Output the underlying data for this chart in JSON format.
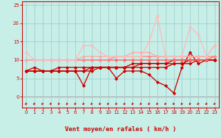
{
  "xlabel": "Vent moyen/en rafales ( km/h )",
  "bg_color": "#c8eee8",
  "grid_color": "#9ecece",
  "x_values": [
    0,
    1,
    2,
    3,
    4,
    5,
    6,
    7,
    8,
    9,
    10,
    11,
    12,
    13,
    14,
    15,
    16,
    17,
    18,
    19,
    20,
    21,
    22,
    23
  ],
  "ylim": [
    -3,
    26
  ],
  "xlim": [
    -0.5,
    23.5
  ],
  "yticks": [
    0,
    5,
    10,
    15,
    20,
    25
  ],
  "xticks": [
    0,
    1,
    2,
    3,
    4,
    5,
    6,
    7,
    8,
    9,
    10,
    11,
    12,
    13,
    14,
    15,
    16,
    17,
    18,
    19,
    20,
    21,
    22,
    23
  ],
  "lines": [
    {
      "y": [
        7,
        8,
        7,
        7,
        7,
        7,
        7,
        3,
        8,
        8,
        8,
        5,
        7,
        7,
        7,
        6,
        4,
        3,
        1,
        8,
        12,
        9,
        10,
        10
      ],
      "color": "#cc0000",
      "lw": 1.0,
      "ms": 2.5
    },
    {
      "y": [
        7,
        7,
        7,
        7,
        7,
        7,
        7,
        7,
        7,
        8,
        8,
        8,
        8,
        8,
        8,
        8,
        8,
        8,
        9,
        9,
        9,
        10,
        10,
        10
      ],
      "color": "#cc0000",
      "lw": 1.0,
      "ms": 2.5
    },
    {
      "y": [
        7,
        7,
        7,
        7,
        7,
        7,
        7,
        7,
        8,
        8,
        8,
        8,
        8,
        8,
        9,
        9,
        9,
        9,
        9,
        9,
        10,
        10,
        10,
        10
      ],
      "color": "#cc0000",
      "lw": 1.0,
      "ms": 2.5
    },
    {
      "y": [
        7,
        7,
        7,
        7,
        8,
        8,
        8,
        8,
        8,
        8,
        8,
        8,
        8,
        9,
        9,
        9,
        9,
        9,
        10,
        10,
        10,
        10,
        10,
        10
      ],
      "color": "#cc0000",
      "lw": 1.0,
      "ms": 2.5
    },
    {
      "y": [
        10,
        10,
        10,
        10,
        10,
        10,
        10,
        10,
        10,
        10,
        10,
        10,
        10,
        10,
        10,
        10,
        10,
        10,
        10,
        10,
        10,
        10,
        10,
        11
      ],
      "color": "#ff6666",
      "lw": 1.0,
      "ms": 2.5
    },
    {
      "y": [
        10,
        10,
        10,
        10,
        10,
        10,
        10,
        10,
        10,
        10,
        10,
        11,
        11,
        11,
        11,
        11,
        11,
        11,
        11,
        11,
        11,
        11,
        11,
        11
      ],
      "color": "#ff8888",
      "lw": 1.0,
      "ms": 2.5
    },
    {
      "y": [
        10,
        10,
        10,
        10,
        10,
        10,
        10,
        11,
        11,
        11,
        11,
        11,
        11,
        12,
        12,
        12,
        11,
        11,
        11,
        11,
        11,
        11,
        11,
        14
      ],
      "color": "#ffaaaa",
      "lw": 1.0,
      "ms": 2.5
    },
    {
      "y": [
        12,
        10,
        10,
        10,
        10,
        10,
        10,
        14,
        14,
        12,
        11,
        11,
        11,
        11,
        11,
        15,
        22,
        11,
        11,
        11,
        19,
        17,
        11,
        14
      ],
      "color": "#ffbbbb",
      "lw": 1.0,
      "ms": 2.5
    }
  ]
}
